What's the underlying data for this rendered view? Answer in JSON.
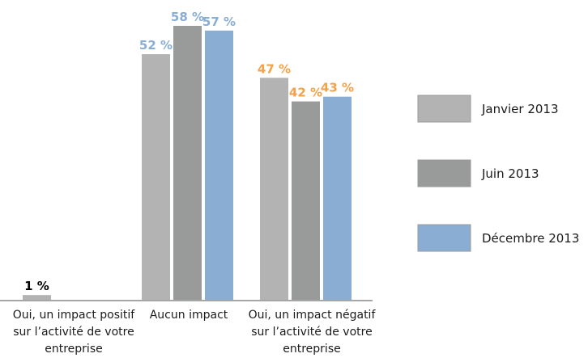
{
  "chart_data": {
    "type": "bar",
    "categories": [
      "Oui, un impact positif\nsur l’activité de votre\nentreprise",
      "Aucun impact",
      "Oui, un impact négatif\nsur l’activité de votre\nentreprise"
    ],
    "series": [
      {
        "name": "Janvier 2013",
        "values": [
          1,
          52,
          47
        ],
        "color": "#b3b3b3"
      },
      {
        "name": "Juin 2013",
        "values": [
          0,
          58,
          42
        ],
        "color": "#999b9b"
      },
      {
        "name": "Décembre 2013",
        "values": [
          0,
          57,
          43
        ],
        "color": "#8aadd4"
      }
    ],
    "data_labels": [
      [
        "1 %",
        "",
        ""
      ],
      [
        "52 %",
        "58 %",
        "57 %"
      ],
      [
        "47 %",
        "42 %",
        "43 %"
      ]
    ],
    "label_colors": [
      "#000000",
      "#8aadd4",
      "#f4a14a"
    ],
    "ylim": [
      0,
      60
    ],
    "grid": false,
    "legend_position": "right"
  }
}
